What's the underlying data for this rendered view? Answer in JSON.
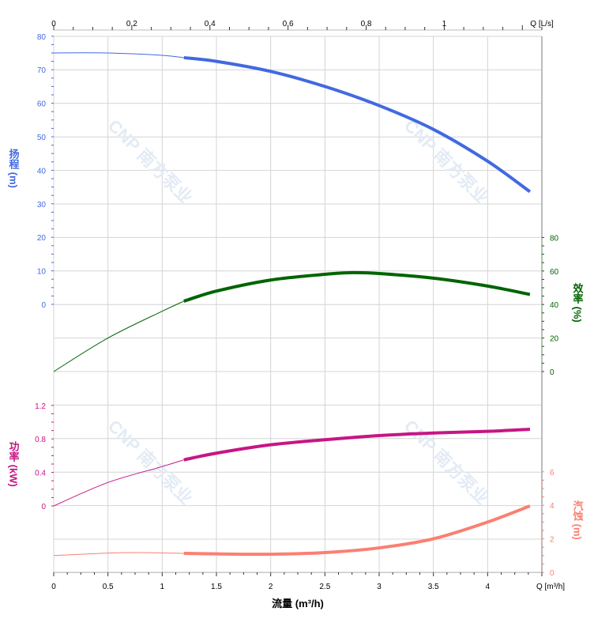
{
  "chart_data": {
    "type": "line",
    "xlabel": "流量 (m³/h)",
    "x_unit_label": "Q [m³/h]",
    "x_ticks": [
      0,
      0.5,
      1,
      1.5,
      2,
      2.5,
      3,
      3.5,
      4
    ],
    "xlim": [
      0,
      4.5
    ],
    "top_axis": {
      "unit_label": "Q [L/s]",
      "ticks": [
        0,
        0.2,
        0.4,
        0.6,
        0.8,
        1
      ],
      "xlim": [
        0,
        1.25
      ]
    },
    "grid": true,
    "watermark": "CNP 南方泵业",
    "operating_range": [
      1.2,
      4.39
    ],
    "series": [
      {
        "name": "扬程",
        "axis_label": "扬程 (m)",
        "axis_side": "left",
        "color": "#4169e1",
        "ylim": [
          0,
          80
        ],
        "ticks": [
          0,
          10,
          20,
          30,
          40,
          50,
          60,
          70,
          80
        ],
        "x": [
          0,
          0.5,
          1.0,
          1.2,
          1.5,
          2.0,
          2.5,
          3.0,
          3.5,
          4.0,
          4.39
        ],
        "y": [
          75,
          75,
          74.3,
          73.6,
          72.5,
          69.5,
          65,
          59.3,
          52.2,
          42.7,
          33.6
        ]
      },
      {
        "name": "效率",
        "axis_label": "效率 (%)",
        "axis_side": "right",
        "color": "#006400",
        "ylim": [
          0,
          80
        ],
        "ticks": [
          0,
          20,
          40,
          60,
          80
        ],
        "x": [
          0,
          0.5,
          1.0,
          1.2,
          1.5,
          2.0,
          2.5,
          2.75,
          3.0,
          3.5,
          4.0,
          4.39
        ],
        "y": [
          0,
          20,
          36,
          42,
          48,
          54.6,
          58,
          59,
          58.5,
          55.7,
          51,
          46
        ]
      },
      {
        "name": "功率",
        "axis_label": "功率 (kW)",
        "axis_side": "left",
        "color": "#c71585",
        "ylim": [
          0,
          1.2
        ],
        "ticks": [
          0,
          0.4,
          0.8,
          1.2
        ],
        "x": [
          0,
          0.5,
          1.0,
          1.2,
          1.5,
          2.0,
          2.5,
          3.0,
          3.5,
          4.0,
          4.39
        ],
        "y": [
          0,
          0.28,
          0.47,
          0.55,
          0.63,
          0.73,
          0.79,
          0.84,
          0.87,
          0.89,
          0.915
        ]
      },
      {
        "name": "汽蚀",
        "axis_label": "汽蚀 (m)",
        "axis_side": "right",
        "color": "#fa8072",
        "ylim": [
          0,
          6
        ],
        "ticks": [
          0,
          2,
          4,
          6
        ],
        "x": [
          0,
          0.5,
          0.8,
          1.2,
          1.5,
          2.0,
          2.5,
          3.0,
          3.5,
          4.0,
          4.39
        ],
        "y": [
          1.0,
          1.15,
          1.18,
          1.13,
          1.1,
          1.08,
          1.18,
          1.46,
          2.0,
          3.0,
          3.96
        ]
      }
    ]
  }
}
